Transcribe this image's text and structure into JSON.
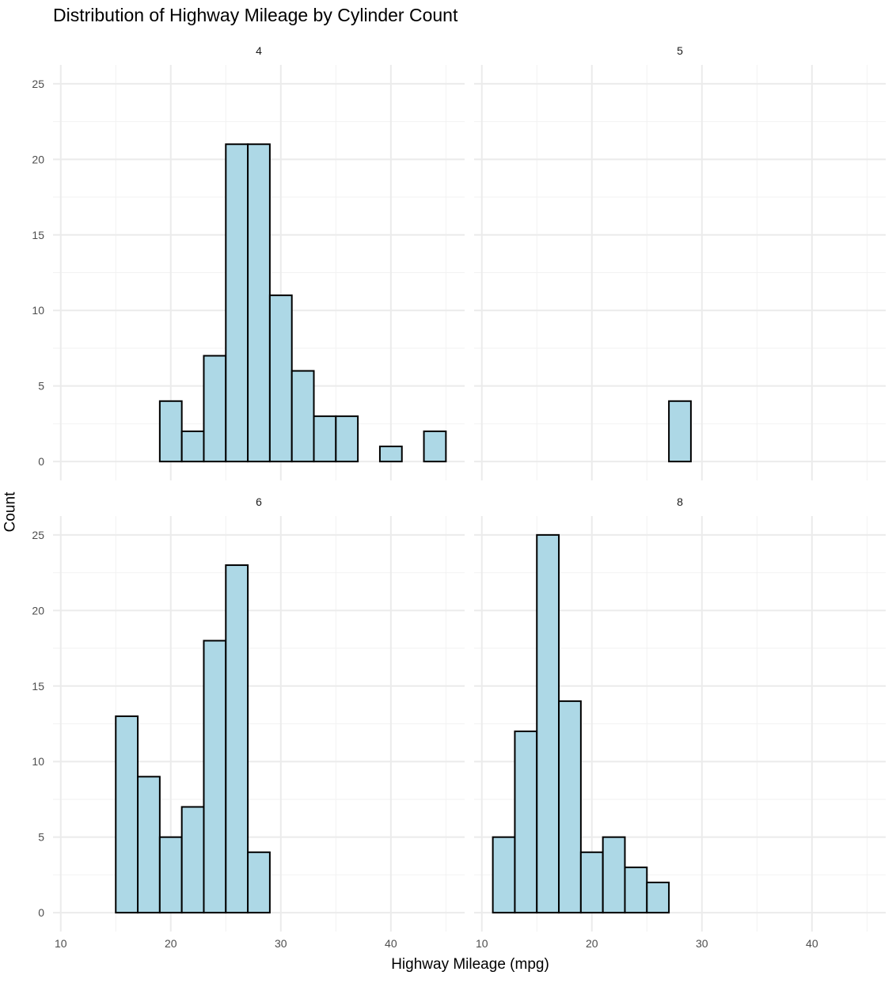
{
  "chart_data": {
    "type": "bar",
    "title": "Distribution of Highway Mileage by Cylinder Count",
    "xlabel": "Highway Mileage (mpg)",
    "ylabel": "Count",
    "bin_width": 2,
    "bin_edges": [
      11,
      13,
      15,
      17,
      19,
      21,
      23,
      25,
      27,
      29,
      31,
      33,
      35,
      37,
      39,
      41,
      43,
      45
    ],
    "xlim": [
      9.3,
      46.7
    ],
    "ylim": [
      -1.25,
      26.25
    ],
    "x_ticks": [
      10,
      20,
      30,
      40
    ],
    "y_ticks": [
      0,
      5,
      10,
      15,
      20,
      25
    ],
    "fill_color": "#add8e6",
    "outline_color": "#000000",
    "grid": true,
    "facets": [
      {
        "label": "4",
        "values": [
          0,
          0,
          0,
          0,
          4,
          2,
          7,
          21,
          21,
          11,
          6,
          3,
          3,
          0,
          1,
          0,
          2
        ]
      },
      {
        "label": "5",
        "values": [
          0,
          0,
          0,
          0,
          0,
          0,
          0,
          0,
          4,
          0,
          0,
          0,
          0,
          0,
          0,
          0,
          0
        ]
      },
      {
        "label": "6",
        "values": [
          0,
          0,
          13,
          9,
          5,
          7,
          18,
          23,
          4,
          0,
          0,
          0,
          0,
          0,
          0,
          0,
          0
        ]
      },
      {
        "label": "8",
        "values": [
          5,
          12,
          25,
          14,
          4,
          5,
          3,
          2,
          0,
          0,
          0,
          0,
          0,
          0,
          0,
          0,
          0
        ]
      }
    ]
  }
}
